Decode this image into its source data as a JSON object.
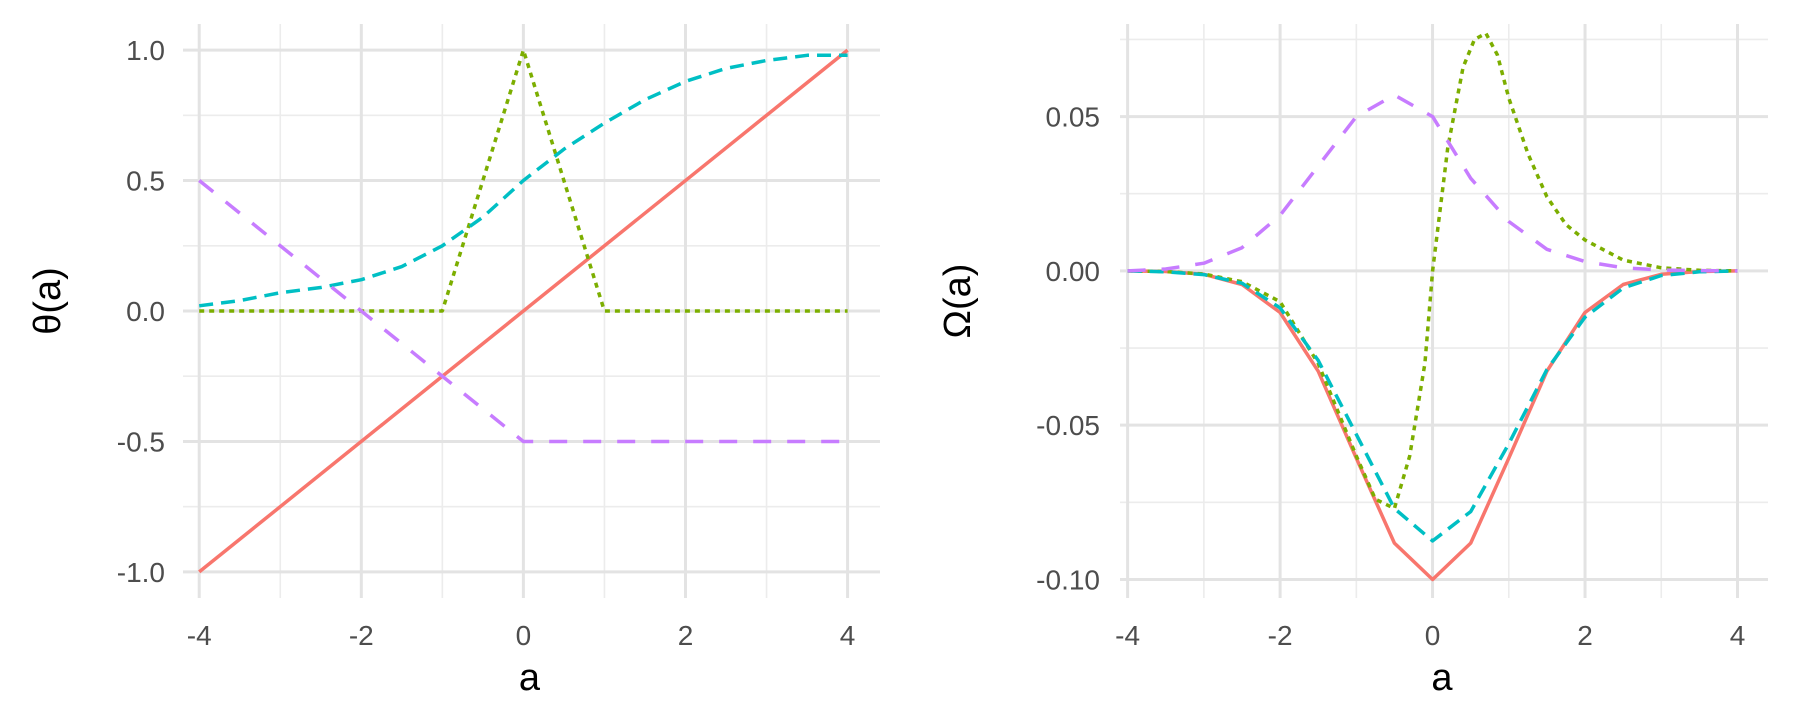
{
  "chart_data": [
    {
      "type": "line",
      "title": "",
      "xlabel": "a",
      "ylabel": "θ(a)",
      "xlim": [
        -4.2,
        4.4
      ],
      "ylim": [
        -1.1,
        1.1
      ],
      "xticks": [
        -4,
        -2,
        0,
        2,
        4
      ],
      "xtick_labels": [
        "-4",
        "-2",
        "0",
        "2",
        "4"
      ],
      "yticks": [
        -1.0,
        -0.5,
        0.0,
        0.5,
        1.0
      ],
      "ytick_labels": [
        "-1.0",
        "-0.5",
        "0.0",
        "0.5",
        "1.0"
      ],
      "xminor": [
        -3,
        -1,
        1,
        3
      ],
      "yminor": [
        -0.75,
        -0.25,
        0.25,
        0.75
      ],
      "grid": true,
      "legend": "none",
      "series": [
        {
          "color": "#F8766D",
          "dash": "solid",
          "x": [
            -4,
            4
          ],
          "y": [
            -1,
            1
          ]
        },
        {
          "color": "#7CAE00",
          "dash": "dotted",
          "x": [
            -4,
            -1,
            0,
            1,
            4
          ],
          "y": [
            0,
            0,
            1,
            0,
            0
          ]
        },
        {
          "color": "#00BFC4",
          "dash": "dashed",
          "x": [
            -4,
            -3.5,
            -3,
            -2.5,
            -2,
            -1.5,
            -1,
            -0.5,
            0,
            0.5,
            1,
            1.5,
            2,
            2.5,
            3,
            3.5,
            4
          ],
          "y": [
            0.02,
            0.04,
            0.07,
            0.09,
            0.12,
            0.17,
            0.25,
            0.36,
            0.5,
            0.62,
            0.72,
            0.81,
            0.88,
            0.93,
            0.96,
            0.98,
            0.98
          ]
        },
        {
          "color": "#C77CFF",
          "dash": "longdash",
          "x": [
            -4,
            0,
            4
          ],
          "y": [
            0.5,
            -0.5,
            -0.5
          ]
        }
      ]
    },
    {
      "type": "line",
      "title": "",
      "xlabel": "a",
      "ylabel": "Ω(a)",
      "xlim": [
        -4.1,
        4.4
      ],
      "ylim": [
        -0.106,
        0.08
      ],
      "xticks": [
        -4,
        -2,
        0,
        2,
        4
      ],
      "xtick_labels": [
        "-4",
        "-2",
        "0",
        "2",
        "4"
      ],
      "yticks": [
        -0.1,
        -0.05,
        0.0,
        0.05
      ],
      "ytick_labels": [
        "-0.10",
        "-0.05",
        "0.00",
        "0.05"
      ],
      "xminor": [
        -3,
        -1,
        1,
        3
      ],
      "yminor": [
        -0.075,
        -0.025,
        0.025,
        0.075
      ],
      "grid": true,
      "legend": "none",
      "series": [
        {
          "color": "#F8766D",
          "dash": "solid",
          "x": [
            -4,
            -3.5,
            -3,
            -2.5,
            -2,
            -1.5,
            -1,
            -0.5,
            0,
            0.5,
            1,
            1.5,
            2,
            2.5,
            3,
            3.5,
            4
          ],
          "y": [
            -0.0,
            -0.0002,
            -0.0011,
            -0.0044,
            -0.0135,
            -0.0325,
            -0.0607,
            -0.0882,
            -0.1,
            -0.0882,
            -0.0607,
            -0.0325,
            -0.0135,
            -0.0044,
            -0.0011,
            -0.0002,
            -0.0
          ]
        },
        {
          "color": "#7CAE00",
          "dash": "dotted",
          "x": [
            -4,
            -3.5,
            -3,
            -2.5,
            -2,
            -1.5,
            -1,
            -0.75,
            -0.5,
            -0.3,
            -0.1,
            0,
            0.2,
            0.4,
            0.55,
            0.7,
            0.85,
            1,
            1.25,
            1.5,
            1.75,
            2,
            2.5,
            3,
            3.5,
            4
          ],
          "y": [
            0,
            -0.0002,
            -0.001,
            -0.0035,
            -0.01,
            -0.03,
            -0.06,
            -0.074,
            -0.077,
            -0.06,
            -0.03,
            0.0,
            0.04,
            0.066,
            0.075,
            0.077,
            0.07,
            0.056,
            0.038,
            0.024,
            0.015,
            0.01,
            0.0035,
            0.001,
            0.0002,
            0
          ]
        },
        {
          "color": "#00BFC4",
          "dash": "dashed",
          "x": [
            -4,
            -3.5,
            -3,
            -2.5,
            -2,
            -1.5,
            -1,
            -0.5,
            0,
            0.5,
            1,
            1.5,
            2,
            2.5,
            3,
            3.5,
            4
          ],
          "y": [
            0,
            -0.0003,
            -0.0012,
            -0.004,
            -0.012,
            -0.029,
            -0.053,
            -0.077,
            -0.0875,
            -0.078,
            -0.056,
            -0.032,
            -0.015,
            -0.0055,
            -0.0015,
            -0.0003,
            0
          ]
        },
        {
          "color": "#C77CFF",
          "dash": "longdash",
          "x": [
            -4,
            -3.5,
            -3,
            -2.5,
            -2,
            -1.5,
            -1,
            -0.5,
            0,
            0.5,
            1,
            1.5,
            2,
            2.5,
            3,
            3.5,
            4
          ],
          "y": [
            0,
            0.0006,
            0.0025,
            0.0075,
            0.018,
            0.034,
            0.05,
            0.057,
            0.05,
            0.03,
            0.016,
            0.007,
            0.003,
            0.001,
            0.0003,
            0.0001,
            0
          ]
        }
      ]
    }
  ]
}
